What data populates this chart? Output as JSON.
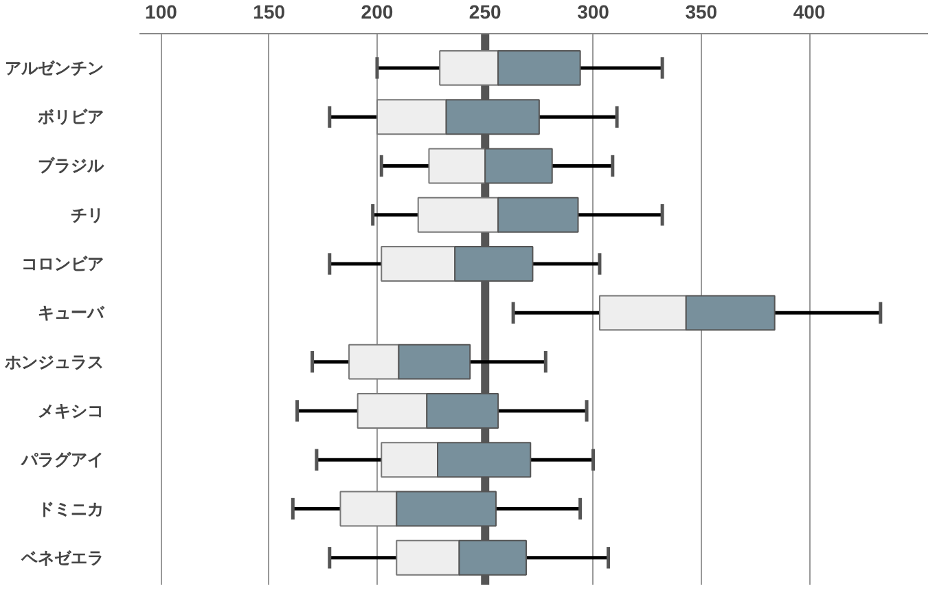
{
  "chart_data": {
    "type": "box",
    "orientation": "horizontal",
    "categories": [
      "アルゼンチン",
      "ボリビア",
      "ブラジル",
      "チリ",
      "コロンビア",
      "キューバ",
      "ホンジュラス",
      "メキシコ",
      "パラグアイ",
      "ドミニカ",
      "ベネゼエラ"
    ],
    "boxes": [
      {
        "low": 200,
        "q1": 229,
        "median": 256,
        "q3": 294,
        "high": 332
      },
      {
        "low": 178,
        "q1": 200,
        "median": 232,
        "q3": 275,
        "high": 311
      },
      {
        "low": 202,
        "q1": 224,
        "median": 250,
        "q3": 281,
        "high": 309
      },
      {
        "low": 198,
        "q1": 219,
        "median": 256,
        "q3": 293,
        "high": 332
      },
      {
        "low": 178,
        "q1": 202,
        "median": 236,
        "q3": 272,
        "high": 303
      },
      {
        "low": 263,
        "q1": 303,
        "median": 343,
        "q3": 384,
        "high": 433
      },
      {
        "low": 170,
        "q1": 187,
        "median": 210,
        "q3": 243,
        "high": 278
      },
      {
        "low": 163,
        "q1": 191,
        "median": 223,
        "q3": 256,
        "high": 297
      },
      {
        "low": 172,
        "q1": 202,
        "median": 228,
        "q3": 271,
        "high": 300
      },
      {
        "low": 161,
        "q1": 183,
        "median": 209,
        "q3": 255,
        "high": 294
      },
      {
        "low": 178,
        "q1": 209,
        "median": 238,
        "q3": 269,
        "high": 307
      }
    ],
    "colors": [
      [
        "#eeeeee",
        "#78909c"
      ],
      [
        "#eeeeee",
        "#78909c"
      ],
      [
        "#eeeeee",
        "#78909c"
      ],
      [
        "#eeeeee",
        "#78909c"
      ],
      [
        "#eeeeee",
        "#78909c"
      ],
      [
        "#eeeeee",
        "#78909c"
      ],
      [
        "#eeeeee",
        "#78909c"
      ],
      [
        "#eeeeee",
        "#78909c"
      ],
      [
        "#eeeeee",
        "#78909c"
      ],
      [
        "#eeeeee",
        "#78909c"
      ],
      [
        "#eeeeee",
        "#78909c"
      ]
    ],
    "xlim": [
      90,
      455
    ],
    "xticks": [
      100,
      150,
      200,
      250,
      300,
      350,
      400
    ],
    "ref_lines": [
      {
        "axis": "x",
        "value": 250,
        "color": "#555555"
      }
    ],
    "grid": "x"
  }
}
